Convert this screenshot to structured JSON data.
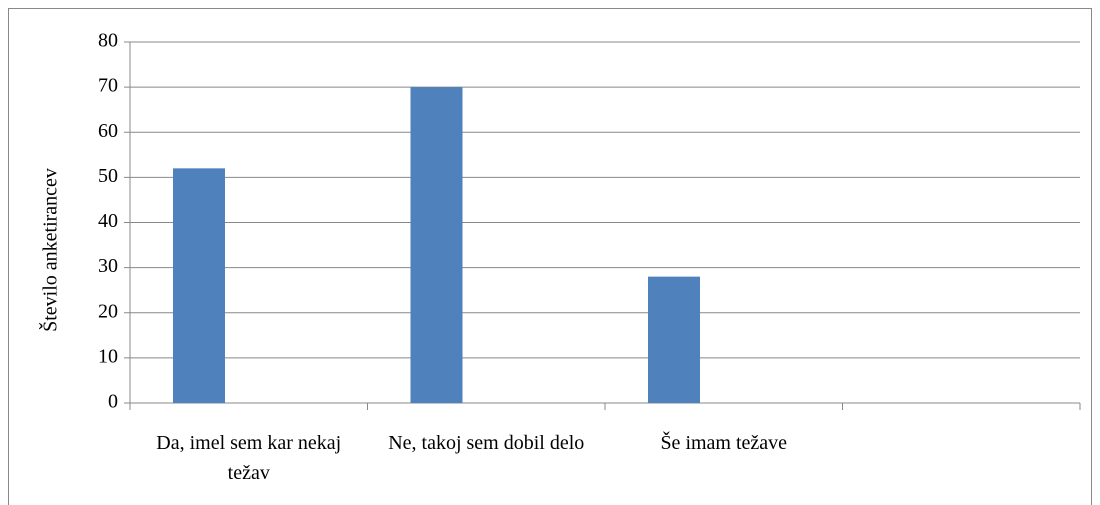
{
  "chart_data": {
    "type": "bar",
    "y_label": "Število anketirancev",
    "categories": [
      "Da, imel sem kar nekaj težav",
      "Ne, takoj sem dobil delo",
      "Še imam težave",
      null
    ],
    "values": [
      52,
      70,
      28,
      null
    ],
    "color": "#4f81bd",
    "ylim": [
      0,
      80
    ],
    "yticks": [
      0,
      10,
      20,
      30,
      40,
      50,
      60,
      70,
      80
    ],
    "grid": true
  }
}
